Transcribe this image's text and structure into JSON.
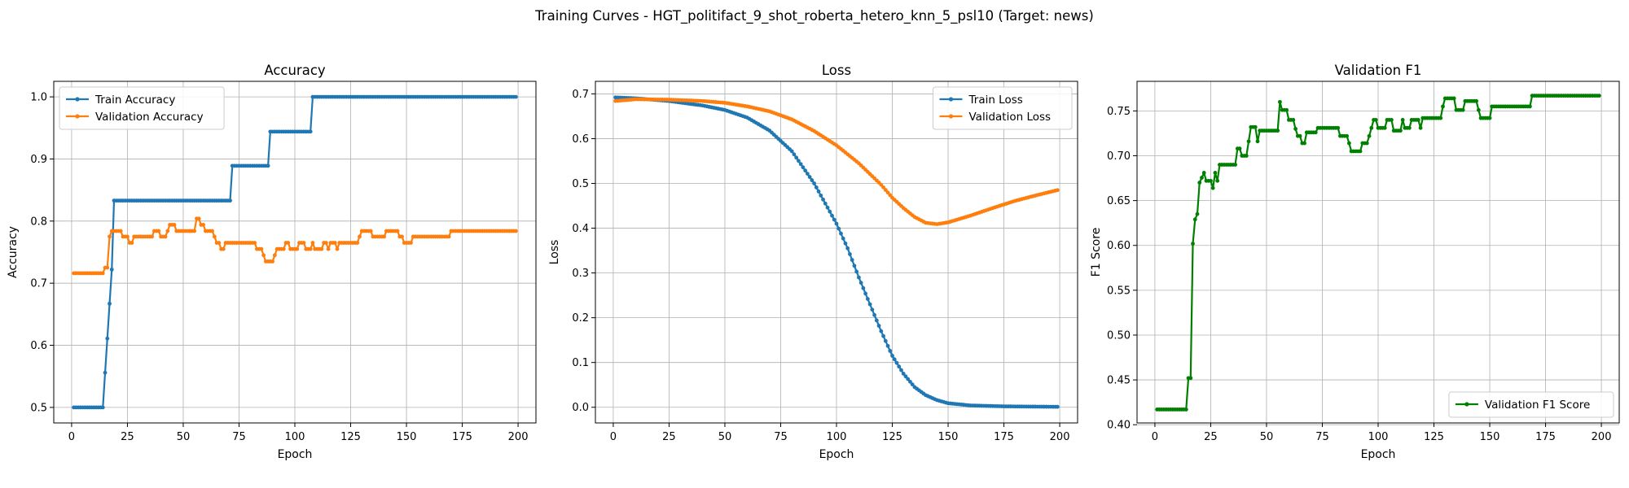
{
  "suptitle": "Training Curves - HGT_politifact_9_shot_roberta_hetero_knn_5_psl10 (Target: news)",
  "colors": {
    "train": "#1f77b4",
    "validation": "#ff7f0e",
    "f1": "#008000"
  },
  "chart_data": [
    {
      "type": "line",
      "title": "Accuracy",
      "xlabel": "Epoch",
      "ylabel": "Accuracy",
      "xlim": [
        -8,
        208
      ],
      "ylim": [
        0.475,
        1.025
      ],
      "xticks": [
        0,
        25,
        50,
        75,
        100,
        125,
        150,
        175,
        200
      ],
      "yticks": [
        0.5,
        0.6,
        0.7,
        0.8,
        0.9,
        1.0
      ],
      "ytick_labels": [
        "0.5",
        "0.6",
        "0.7",
        "0.8",
        "0.9",
        "1.0"
      ],
      "grid": true,
      "legend": "upper-left",
      "series": [
        {
          "name": "Train Accuracy",
          "color": "#1f77b4",
          "marker": "circle",
          "x_range": [
            1,
            199
          ],
          "points": [
            [
              1,
              0.5
            ],
            [
              14,
              0.5
            ],
            [
              15,
              0.556
            ],
            [
              16,
              0.611
            ],
            [
              17,
              0.667
            ],
            [
              18,
              0.722
            ],
            [
              19,
              0.833
            ],
            [
              71,
              0.833
            ],
            [
              72,
              0.889
            ],
            [
              88,
              0.889
            ],
            [
              89,
              0.944
            ],
            [
              107,
              0.944
            ],
            [
              108,
              1.0
            ],
            [
              199,
              1.0
            ]
          ]
        },
        {
          "name": "Validation Accuracy",
          "color": "#ff7f0e",
          "marker": "circle",
          "x_range": [
            1,
            199
          ],
          "points": [
            [
              1,
              0.716
            ],
            [
              14,
              0.716
            ],
            [
              15,
              0.725
            ],
            [
              16,
              0.725
            ],
            [
              17,
              0.775
            ],
            [
              18,
              0.784
            ],
            [
              22,
              0.784
            ],
            [
              23,
              0.775
            ],
            [
              25,
              0.775
            ],
            [
              26,
              0.765
            ],
            [
              27,
              0.765
            ],
            [
              28,
              0.775
            ],
            [
              36,
              0.775
            ],
            [
              37,
              0.784
            ],
            [
              39,
              0.784
            ],
            [
              40,
              0.775
            ],
            [
              42,
              0.775
            ],
            [
              43,
              0.784
            ],
            [
              44,
              0.794
            ],
            [
              46,
              0.794
            ],
            [
              47,
              0.784
            ],
            [
              49,
              0.784
            ],
            [
              50,
              0.784
            ],
            [
              55,
              0.784
            ],
            [
              56,
              0.804
            ],
            [
              57,
              0.804
            ],
            [
              58,
              0.794
            ],
            [
              59,
              0.794
            ],
            [
              60,
              0.784
            ],
            [
              63,
              0.784
            ],
            [
              64,
              0.775
            ],
            [
              65,
              0.765
            ],
            [
              66,
              0.765
            ],
            [
              67,
              0.755
            ],
            [
              68,
              0.755
            ],
            [
              69,
              0.765
            ],
            [
              82,
              0.765
            ],
            [
              83,
              0.755
            ],
            [
              85,
              0.755
            ],
            [
              86,
              0.745
            ],
            [
              87,
              0.735
            ],
            [
              90,
              0.735
            ],
            [
              91,
              0.745
            ],
            [
              92,
              0.755
            ],
            [
              95,
              0.755
            ],
            [
              96,
              0.765
            ],
            [
              97,
              0.765
            ],
            [
              98,
              0.755
            ],
            [
              101,
              0.755
            ],
            [
              102,
              0.765
            ],
            [
              104,
              0.765
            ],
            [
              105,
              0.755
            ],
            [
              107,
              0.755
            ],
            [
              108,
              0.765
            ],
            [
              109,
              0.755
            ],
            [
              112,
              0.755
            ],
            [
              113,
              0.765
            ],
            [
              114,
              0.765
            ],
            [
              115,
              0.755
            ],
            [
              116,
              0.765
            ],
            [
              118,
              0.765
            ],
            [
              119,
              0.755
            ],
            [
              120,
              0.765
            ],
            [
              128,
              0.765
            ],
            [
              129,
              0.775
            ],
            [
              130,
              0.784
            ],
            [
              134,
              0.784
            ],
            [
              135,
              0.775
            ],
            [
              140,
              0.775
            ],
            [
              141,
              0.784
            ],
            [
              146,
              0.784
            ],
            [
              147,
              0.775
            ],
            [
              148,
              0.775
            ],
            [
              149,
              0.765
            ],
            [
              152,
              0.765
            ],
            [
              153,
              0.775
            ],
            [
              169,
              0.775
            ],
            [
              170,
              0.784
            ],
            [
              199,
              0.784
            ]
          ]
        }
      ]
    },
    {
      "type": "line",
      "title": "Loss",
      "xlabel": "Epoch",
      "ylabel": "Loss",
      "xlim": [
        -8,
        208
      ],
      "ylim": [
        -0.035,
        0.728
      ],
      "xticks": [
        0,
        25,
        50,
        75,
        100,
        125,
        150,
        175,
        200
      ],
      "yticks": [
        0.0,
        0.1,
        0.2,
        0.3,
        0.4,
        0.5,
        0.6,
        0.7
      ],
      "ytick_labels": [
        "0.0",
        "0.1",
        "0.2",
        "0.3",
        "0.4",
        "0.5",
        "0.6",
        "0.7"
      ],
      "grid": true,
      "legend": "upper-right",
      "series": [
        {
          "name": "Train Loss",
          "color": "#1f77b4",
          "marker": "circle",
          "x_range": [
            1,
            199
          ],
          "points": [
            [
              1,
              0.692
            ],
            [
              10,
              0.69
            ],
            [
              25,
              0.684
            ],
            [
              40,
              0.674
            ],
            [
              50,
              0.664
            ],
            [
              60,
              0.647
            ],
            [
              70,
              0.618
            ],
            [
              80,
              0.572
            ],
            [
              90,
              0.5
            ],
            [
              100,
              0.41
            ],
            [
              105,
              0.355
            ],
            [
              110,
              0.29
            ],
            [
              115,
              0.23
            ],
            [
              120,
              0.17
            ],
            [
              125,
              0.115
            ],
            [
              130,
              0.075
            ],
            [
              135,
              0.045
            ],
            [
              140,
              0.027
            ],
            [
              145,
              0.016
            ],
            [
              150,
              0.009
            ],
            [
              160,
              0.004
            ],
            [
              175,
              0.002
            ],
            [
              199,
              0.001
            ]
          ]
        },
        {
          "name": "Validation Loss",
          "color": "#ff7f0e",
          "marker": "circle",
          "x_range": [
            1,
            199
          ],
          "points": [
            [
              1,
              0.684
            ],
            [
              10,
              0.688
            ],
            [
              25,
              0.687
            ],
            [
              40,
              0.684
            ],
            [
              50,
              0.68
            ],
            [
              60,
              0.672
            ],
            [
              70,
              0.661
            ],
            [
              80,
              0.643
            ],
            [
              90,
              0.617
            ],
            [
              100,
              0.585
            ],
            [
              110,
              0.545
            ],
            [
              120,
              0.497
            ],
            [
              125,
              0.468
            ],
            [
              130,
              0.445
            ],
            [
              135,
              0.425
            ],
            [
              140,
              0.412
            ],
            [
              145,
              0.409
            ],
            [
              150,
              0.413
            ],
            [
              160,
              0.428
            ],
            [
              170,
              0.445
            ],
            [
              180,
              0.461
            ],
            [
              190,
              0.474
            ],
            [
              199,
              0.485
            ]
          ]
        }
      ]
    },
    {
      "type": "line",
      "title": "Validation F1",
      "xlabel": "Epoch",
      "ylabel": "F1 Score",
      "xlim": [
        -8,
        208
      ],
      "ylim": [
        0.402,
        0.783
      ],
      "xticks": [
        0,
        25,
        50,
        75,
        100,
        125,
        150,
        175,
        200
      ],
      "yticks": [
        0.4,
        0.45,
        0.5,
        0.55,
        0.6,
        0.65,
        0.7,
        0.75
      ],
      "ytick_labels": [
        "0.40",
        "0.45",
        "0.50",
        "0.55",
        "0.60",
        "0.65",
        "0.70",
        "0.75"
      ],
      "grid": true,
      "legend": "lower-right",
      "series": [
        {
          "name": "Validation F1 Score",
          "color": "#008000",
          "marker": "circle",
          "x_range": [
            1,
            199
          ],
          "points": [
            [
              1,
              0.417
            ],
            [
              14,
              0.417
            ],
            [
              15,
              0.452
            ],
            [
              16,
              0.452
            ],
            [
              17,
              0.602
            ],
            [
              18,
              0.629
            ],
            [
              19,
              0.635
            ],
            [
              20,
              0.67
            ],
            [
              22,
              0.681
            ],
            [
              23,
              0.672
            ],
            [
              25,
              0.672
            ],
            [
              26,
              0.664
            ],
            [
              27,
              0.681
            ],
            [
              28,
              0.672
            ],
            [
              29,
              0.69
            ],
            [
              36,
              0.69
            ],
            [
              37,
              0.708
            ],
            [
              38,
              0.708
            ],
            [
              39,
              0.7
            ],
            [
              41,
              0.7
            ],
            [
              42,
              0.716
            ],
            [
              43,
              0.732
            ],
            [
              45,
              0.732
            ],
            [
              46,
              0.716
            ],
            [
              47,
              0.728
            ],
            [
              55,
              0.728
            ],
            [
              56,
              0.76
            ],
            [
              57,
              0.751
            ],
            [
              59,
              0.751
            ],
            [
              60,
              0.74
            ],
            [
              62,
              0.74
            ],
            [
              63,
              0.73
            ],
            [
              64,
              0.722
            ],
            [
              65,
              0.722
            ],
            [
              66,
              0.714
            ],
            [
              67,
              0.714
            ],
            [
              68,
              0.726
            ],
            [
              72,
              0.726
            ],
            [
              73,
              0.731
            ],
            [
              82,
              0.731
            ],
            [
              83,
              0.722
            ],
            [
              86,
              0.722
            ],
            [
              87,
              0.714
            ],
            [
              88,
              0.705
            ],
            [
              92,
              0.705
            ],
            [
              93,
              0.714
            ],
            [
              95,
              0.714
            ],
            [
              96,
              0.722
            ],
            [
              97,
              0.731
            ],
            [
              98,
              0.74
            ],
            [
              99,
              0.74
            ],
            [
              100,
              0.731
            ],
            [
              103,
              0.731
            ],
            [
              104,
              0.74
            ],
            [
              106,
              0.74
            ],
            [
              107,
              0.728
            ],
            [
              110,
              0.728
            ],
            [
              111,
              0.74
            ],
            [
              112,
              0.731
            ],
            [
              114,
              0.731
            ],
            [
              115,
              0.74
            ],
            [
              118,
              0.74
            ],
            [
              119,
              0.731
            ],
            [
              120,
              0.742
            ],
            [
              128,
              0.742
            ],
            [
              129,
              0.755
            ],
            [
              130,
              0.764
            ],
            [
              134,
              0.764
            ],
            [
              135,
              0.751
            ],
            [
              138,
              0.751
            ],
            [
              139,
              0.761
            ],
            [
              144,
              0.761
            ],
            [
              145,
              0.751
            ],
            [
              146,
              0.742
            ],
            [
              150,
              0.742
            ],
            [
              151,
              0.755
            ],
            [
              168,
              0.755
            ],
            [
              169,
              0.767
            ],
            [
              199,
              0.767
            ]
          ]
        }
      ]
    }
  ]
}
